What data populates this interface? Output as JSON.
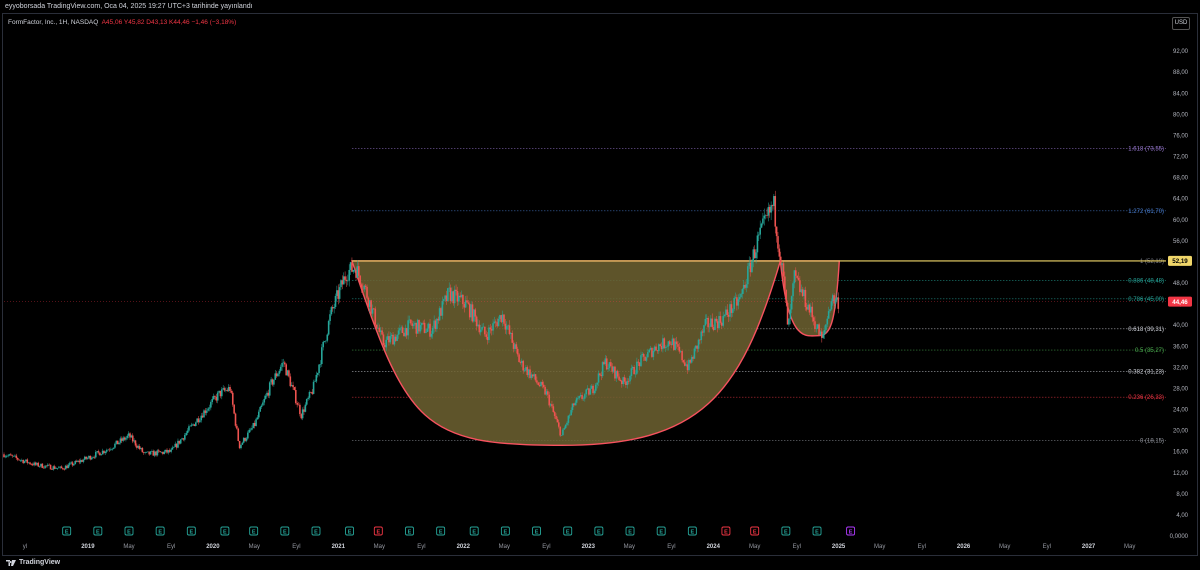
{
  "header": {
    "published_by": "eyyoborsada TradingView.com, Oca 04, 2025 19:27 UTC+3 tarihinde yayınlandı"
  },
  "symbol": {
    "title": "FormFactor, Inc., 1H, NASDAQ",
    "ohlc": "A45,06  Y45,82  D43,13  K44,46  −1,46 (−3,18%)"
  },
  "currency": "USD",
  "footer": {
    "brand": "TradingView"
  },
  "colors": {
    "up": "#26a69a",
    "down": "#ef5350",
    "cup_fill": "#6e6331",
    "cup_line": "#f7525f",
    "rim_line": "#f0d66a",
    "price_badge": "#f23645",
    "rim_badge": "#f0d66a",
    "event_badge": "#26a69a"
  },
  "chart_data": {
    "type": "candlestick",
    "title": "FormFactor, Inc., 1H, NASDAQ",
    "y_axis": {
      "range": [
        0,
        96
      ],
      "ticks": [
        "0,0000",
        "4,00",
        "8,00",
        "12,00",
        "16,00",
        "20,00",
        "24,00",
        "28,00",
        "32,00",
        "36,00",
        "40,00",
        "44,00",
        "48,00",
        "52,00",
        "56,00",
        "60,00",
        "64,00",
        "68,00",
        "72,00",
        "76,00",
        "80,00",
        "84,00",
        "88,00",
        "92,00"
      ]
    },
    "x_axis": {
      "range": [
        "2018-05-01",
        "2027-08-15"
      ],
      "ticks": [
        {
          "label": "yl",
          "date": "2018-07-01"
        },
        {
          "label": "2019",
          "date": "2019-01-01"
        },
        {
          "label": "May",
          "date": "2019-05-01"
        },
        {
          "label": "Eyl",
          "date": "2019-09-01"
        },
        {
          "label": "2020",
          "date": "2020-01-01"
        },
        {
          "label": "May",
          "date": "2020-05-01"
        },
        {
          "label": "Eyl",
          "date": "2020-09-01"
        },
        {
          "label": "2021",
          "date": "2021-01-01"
        },
        {
          "label": "May",
          "date": "2021-05-01"
        },
        {
          "label": "Eyl",
          "date": "2021-09-01"
        },
        {
          "label": "2022",
          "date": "2022-01-01"
        },
        {
          "label": "May",
          "date": "2022-05-01"
        },
        {
          "label": "Eyl",
          "date": "2022-09-01"
        },
        {
          "label": "2023",
          "date": "2023-01-01"
        },
        {
          "label": "May",
          "date": "2023-05-01"
        },
        {
          "label": "Eyl",
          "date": "2023-09-01"
        },
        {
          "label": "2024",
          "date": "2024-01-01"
        },
        {
          "label": "May",
          "date": "2024-05-01"
        },
        {
          "label": "Eyl",
          "date": "2024-09-01"
        },
        {
          "label": "2025",
          "date": "2025-01-01"
        },
        {
          "label": "May",
          "date": "2025-05-01"
        },
        {
          "label": "Eyl",
          "date": "2025-09-01"
        },
        {
          "label": "2026",
          "date": "2026-01-01"
        },
        {
          "label": "May",
          "date": "2026-05-01"
        },
        {
          "label": "Eyl",
          "date": "2026-09-01"
        },
        {
          "label": "2027",
          "date": "2027-01-01"
        },
        {
          "label": "May",
          "date": "2027-05-01"
        }
      ]
    },
    "price_path": [
      [
        "2018-05-01",
        15.5
      ],
      [
        "2018-08-01",
        13.5
      ],
      [
        "2018-10-15",
        12.8
      ],
      [
        "2018-12-20",
        14.5
      ],
      [
        "2019-03-01",
        16.5
      ],
      [
        "2019-05-01",
        19.0
      ],
      [
        "2019-06-15",
        15.5
      ],
      [
        "2019-09-01",
        16.0
      ],
      [
        "2019-11-15",
        22.0
      ],
      [
        "2020-01-20",
        27.0
      ],
      [
        "2020-02-20",
        28.0
      ],
      [
        "2020-03-18",
        17.0
      ],
      [
        "2020-05-01",
        21.0
      ],
      [
        "2020-06-20",
        29.0
      ],
      [
        "2020-07-25",
        33.0
      ],
      [
        "2020-09-15",
        23.0
      ],
      [
        "2020-10-20",
        28.0
      ],
      [
        "2020-12-10",
        42.0
      ],
      [
        "2021-01-25",
        50.0
      ],
      [
        "2021-02-20",
        51.0
      ],
      [
        "2021-03-20",
        47.0
      ],
      [
        "2021-05-12",
        36.5
      ],
      [
        "2021-06-20",
        38.0
      ],
      [
        "2021-08-01",
        40.0
      ],
      [
        "2021-10-01",
        39.0
      ],
      [
        "2021-11-20",
        46.0
      ],
      [
        "2022-01-10",
        44.0
      ],
      [
        "2022-03-07",
        38.0
      ],
      [
        "2022-04-25",
        42.0
      ],
      [
        "2022-06-15",
        33.0
      ],
      [
        "2022-07-25",
        30.0
      ],
      [
        "2022-09-01",
        27.0
      ],
      [
        "2022-10-15",
        19.0
      ],
      [
        "2022-11-20",
        25.0
      ],
      [
        "2023-01-15",
        28.0
      ],
      [
        "2023-02-20",
        33.0
      ],
      [
        "2023-04-15",
        29.0
      ],
      [
        "2023-06-01",
        33.0
      ],
      [
        "2023-07-20",
        36.0
      ],
      [
        "2023-09-01",
        37.0
      ],
      [
        "2023-10-20",
        32.0
      ],
      [
        "2023-12-10",
        40.0
      ],
      [
        "2024-01-25",
        41.0
      ],
      [
        "2024-03-20",
        45.0
      ],
      [
        "2024-05-10",
        56.0
      ],
      [
        "2024-06-25",
        63.0
      ],
      [
        "2024-07-25",
        48.0
      ],
      [
        "2024-08-07",
        39.0
      ],
      [
        "2024-08-25",
        49.0
      ],
      [
        "2024-10-01",
        44.0
      ],
      [
        "2024-11-15",
        37.0
      ],
      [
        "2024-12-10",
        45.0
      ],
      [
        "2025-01-03",
        44.46
      ]
    ],
    "current_price": 44.46,
    "current_price_label": "44,46",
    "rim": {
      "value": 52.19,
      "label": "52,19",
      "from": "2021-02-10",
      "to": "2025-01-03"
    },
    "cup": {
      "left": "2021-02-10",
      "bottom_date": "2022-10-15",
      "bottom": 17.2,
      "right": "2024-07-15"
    },
    "handle": {
      "left": "2024-07-15",
      "bottom_date": "2024-11-01",
      "bottom": 38.0,
      "right": "2025-01-03"
    },
    "fibonacci": {
      "from_date": "2021-02-10",
      "levels": [
        {
          "label": "0 (18,15)",
          "value": 18.15,
          "color": "#9598a1"
        },
        {
          "label": "0.236 (26,33)",
          "value": 26.33,
          "color": "#f23645"
        },
        {
          "label": "0.382 (31,23)",
          "value": 31.23,
          "color": "#d1d4dc"
        },
        {
          "label": "0.5 (35,27)",
          "value": 35.27,
          "color": "#4caf50"
        },
        {
          "label": "0.618 (39,31)",
          "value": 39.31,
          "color": "#d1d4dc"
        },
        {
          "label": "0.786 (45,00)",
          "value": 45.0,
          "color": "#26a69a"
        },
        {
          "label": "0.886 (48,48)",
          "value": 48.48,
          "color": "#26a69a"
        },
        {
          "label": "1 (52,19)",
          "value": 52.19,
          "color": "#787b86"
        },
        {
          "label": "1.272 (61,70)",
          "value": 61.7,
          "color": "#4a80d4"
        },
        {
          "label": "1.618 (73,55)",
          "value": 73.55,
          "color": "#9b7bd4"
        }
      ]
    },
    "earnings_markers": [
      {
        "date": "2018-10-31",
        "letter": "E",
        "color": "#26a69a"
      },
      {
        "date": "2019-01-30",
        "letter": "E",
        "color": "#26a69a"
      },
      {
        "date": "2019-05-01",
        "letter": "E",
        "color": "#26a69a"
      },
      {
        "date": "2019-07-31",
        "letter": "E",
        "color": "#26a69a"
      },
      {
        "date": "2019-10-30",
        "letter": "E",
        "color": "#26a69a"
      },
      {
        "date": "2020-02-05",
        "letter": "E",
        "color": "#26a69a"
      },
      {
        "date": "2020-04-29",
        "letter": "E",
        "color": "#26a69a"
      },
      {
        "date": "2020-07-29",
        "letter": "E",
        "color": "#26a69a"
      },
      {
        "date": "2020-10-28",
        "letter": "E",
        "color": "#26a69a"
      },
      {
        "date": "2021-02-03",
        "letter": "E",
        "color": "#26a69a"
      },
      {
        "date": "2021-04-28",
        "letter": "E",
        "color": "#f23645"
      },
      {
        "date": "2021-07-28",
        "letter": "E",
        "color": "#26a69a"
      },
      {
        "date": "2021-10-27",
        "letter": "E",
        "color": "#26a69a"
      },
      {
        "date": "2022-02-02",
        "letter": "E",
        "color": "#26a69a"
      },
      {
        "date": "2022-05-04",
        "letter": "E",
        "color": "#26a69a"
      },
      {
        "date": "2022-08-03",
        "letter": "E",
        "color": "#26a69a"
      },
      {
        "date": "2022-11-02",
        "letter": "E",
        "color": "#26a69a"
      },
      {
        "date": "2023-02-01",
        "letter": "E",
        "color": "#26a69a"
      },
      {
        "date": "2023-05-03",
        "letter": "E",
        "color": "#26a69a"
      },
      {
        "date": "2023-08-02",
        "letter": "E",
        "color": "#26a69a"
      },
      {
        "date": "2023-11-01",
        "letter": "E",
        "color": "#26a69a"
      },
      {
        "date": "2024-02-07",
        "letter": "E",
        "color": "#f23645"
      },
      {
        "date": "2024-05-01",
        "letter": "E",
        "color": "#f23645"
      },
      {
        "date": "2024-07-31",
        "letter": "E",
        "color": "#26a69a"
      },
      {
        "date": "2024-10-30",
        "letter": "E",
        "color": "#26a69a"
      },
      {
        "date": "2025-02-05",
        "letter": "E",
        "color": "#b03aff"
      }
    ],
    "grid": false,
    "legend": "none"
  }
}
